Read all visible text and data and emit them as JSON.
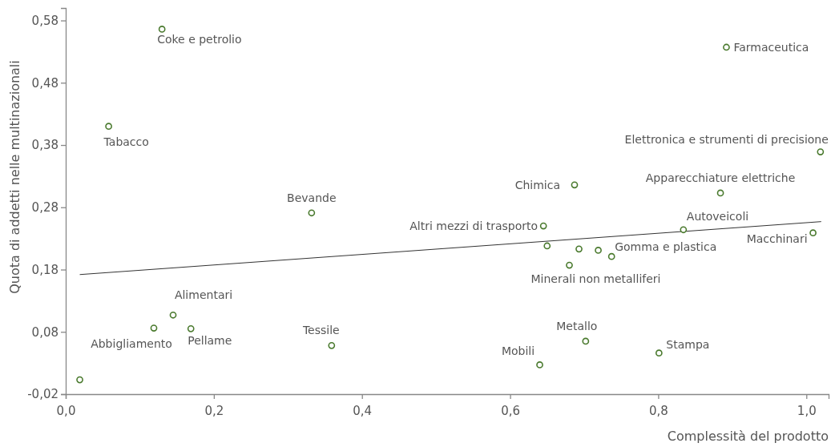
{
  "chart_data": {
    "type": "scatter",
    "xlabel": "Complessità del prodotto",
    "ylabel": "Quota di addetti nelle multinazionali",
    "xlim": [
      0,
      1.03
    ],
    "ylim": [
      -0.02,
      0.6
    ],
    "xticks": [
      {
        "value": 0,
        "label": "0,0"
      },
      {
        "value": 0.2,
        "label": "0,2"
      },
      {
        "value": 0.4,
        "label": "0,4"
      },
      {
        "value": 0.6,
        "label": "0,6"
      },
      {
        "value": 0.8,
        "label": "0,8"
      },
      {
        "value": 1.0,
        "label": "1,0"
      }
    ],
    "yticks": [
      {
        "value": -0.02,
        "label": "-0,02"
      },
      {
        "value": 0.08,
        "label": "0,08"
      },
      {
        "value": 0.18,
        "label": "0,18"
      },
      {
        "value": 0.28,
        "label": "0,28"
      },
      {
        "value": 0.38,
        "label": "0,38"
      },
      {
        "value": 0.48,
        "label": "0,48"
      },
      {
        "value": 0.58,
        "label": "0,58"
      }
    ],
    "grid": false,
    "series": [
      {
        "marker": "circle",
        "color": "#4a7a2e",
        "x": [
          0.019,
          0.119,
          0.145,
          0.169,
          0.359,
          0.13,
          0.058,
          0.332,
          0.892,
          1.019,
          0.687,
          0.884,
          0.645,
          0.834,
          1.009,
          0.65,
          0.693,
          0.719,
          0.737,
          0.68,
          0.702,
          0.64,
          0.801
        ],
        "values": [
          0.003,
          0.086,
          0.107,
          0.085,
          0.058,
          0.566,
          0.41,
          0.271,
          0.537,
          0.369,
          0.316,
          0.303,
          0.25,
          0.244,
          0.239,
          0.218,
          0.213,
          0.211,
          0.201,
          0.187,
          0.065,
          0.027,
          0.046
        ]
      },
      {
        "type": "line",
        "color": "#333333",
        "x": [
          0.019,
          1.02
        ],
        "values": [
          0.172,
          0.257
        ]
      }
    ],
    "annotations": [
      {
        "text": "Abbigliamento",
        "x": 0.119,
        "y": 0.086
      },
      {
        "text": "Alimentari",
        "x": 0.145,
        "y": 0.107
      },
      {
        "text": "Pellame",
        "x": 0.169,
        "y": 0.085
      },
      {
        "text": "Tessile",
        "x": 0.359,
        "y": 0.058
      },
      {
        "text": "Coke e petrolio",
        "x": 0.13,
        "y": 0.566
      },
      {
        "text": "Tabacco",
        "x": 0.058,
        "y": 0.41
      },
      {
        "text": "Bevande",
        "x": 0.332,
        "y": 0.271
      },
      {
        "text": "Farmaceutica",
        "x": 0.892,
        "y": 0.537
      },
      {
        "text": "Elettronica e strumenti di precisione",
        "x": 1.019,
        "y": 0.369
      },
      {
        "text": "Chimica",
        "x": 0.687,
        "y": 0.316
      },
      {
        "text": "Apparecchiature elettriche",
        "x": 0.884,
        "y": 0.303
      },
      {
        "text": "Altri mezzi di trasporto",
        "x": 0.645,
        "y": 0.25
      },
      {
        "text": "Autoveicoli",
        "x": 0.834,
        "y": 0.244
      },
      {
        "text": "Macchinari",
        "x": 1.009,
        "y": 0.239
      },
      {
        "text": "Gomma e plastica",
        "x": 0.737,
        "y": 0.201
      },
      {
        "text": "Minerali non metalliferi",
        "x": 0.68,
        "y": 0.187
      },
      {
        "text": "Metallo",
        "x": 0.702,
        "y": 0.065
      },
      {
        "text": "Mobili",
        "x": 0.64,
        "y": 0.027
      },
      {
        "text": "Stampa",
        "x": 0.801,
        "y": 0.046
      }
    ]
  }
}
